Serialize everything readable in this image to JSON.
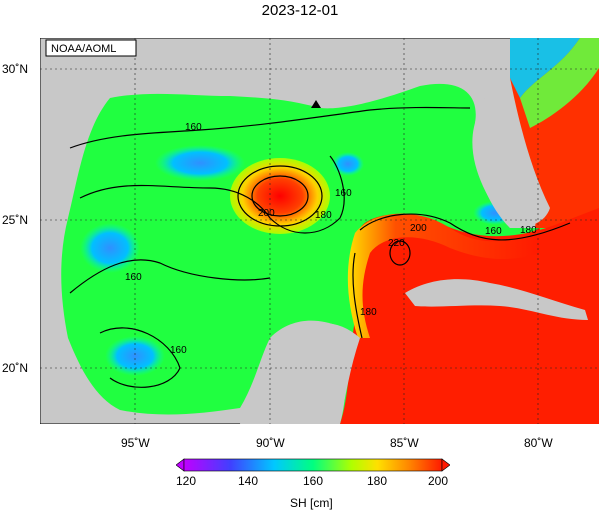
{
  "title": "2023-12-01",
  "credit": "NOAA/AOML",
  "lat_labels": [
    "30˚N",
    "25˚N",
    "20˚N"
  ],
  "lon_labels": [
    "95˚W",
    "90˚W",
    "85˚W",
    "80˚W"
  ],
  "contour_labels": [
    "160",
    "160",
    "160",
    "160",
    "160",
    "180",
    "180",
    "180",
    "200",
    "200",
    "220",
    "180"
  ],
  "colorbar": {
    "label": "SH [cm]",
    "ticks": [
      "120",
      "140",
      "160",
      "180",
      "200"
    ],
    "colors": [
      "#c000ff",
      "#4040ff",
      "#00c8ff",
      "#00ff80",
      "#b0ff00",
      "#ffe000",
      "#ff8000",
      "#ff1a00"
    ]
  },
  "marker": "triangle"
}
